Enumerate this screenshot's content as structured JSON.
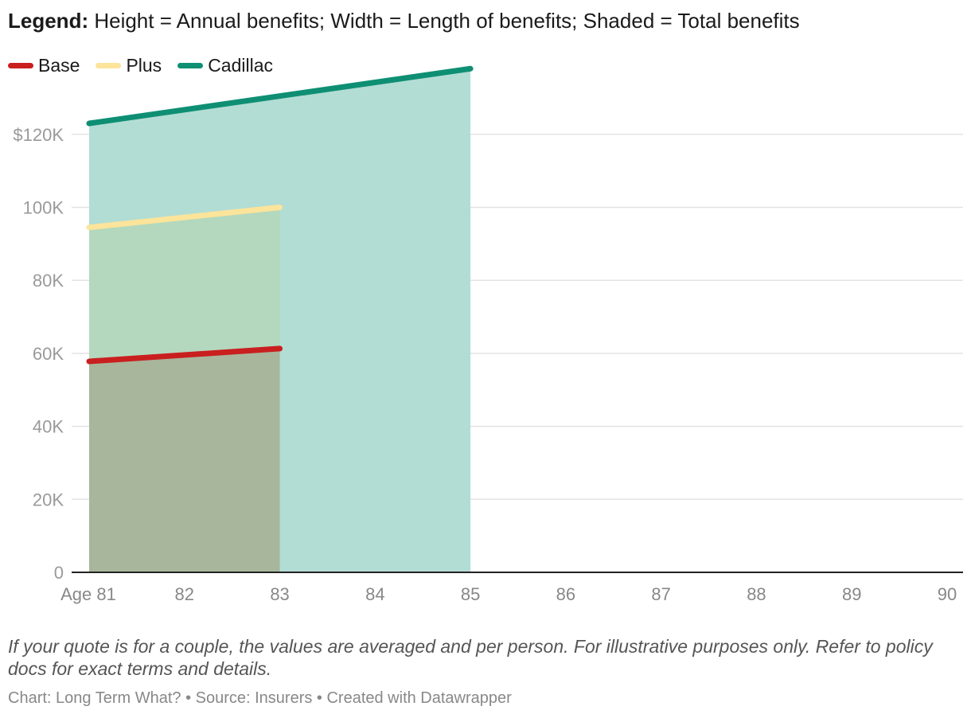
{
  "header": {
    "legend_label": "Legend:",
    "legend_text": " Height = Annual benefits; Width = Length of benefits; Shaded = Total benefits"
  },
  "chart_data": {
    "type": "area",
    "title": "Legend: Height = Annual benefits; Width = Length of benefits; Shaded = Total benefits",
    "xlabel": "",
    "ylabel": "",
    "x_ticks": [
      81,
      82,
      83,
      84,
      85,
      86,
      87,
      88,
      89,
      90
    ],
    "x_tick_labels": [
      "Age 81",
      "82",
      "83",
      "84",
      "85",
      "86",
      "87",
      "88",
      "89",
      "90"
    ],
    "xlim": [
      81,
      90
    ],
    "ylim": [
      0,
      135000
    ],
    "y_ticks": [
      0,
      20000,
      40000,
      60000,
      80000,
      100000,
      120000
    ],
    "y_tick_labels": [
      "0",
      "20K",
      "40K",
      "60K",
      "80K",
      "100K",
      "$120K"
    ],
    "grid": true,
    "legend_position": "top-left",
    "series": [
      {
        "name": "Cadillac",
        "color": "#0e8f73",
        "fill": "#b2ddd4",
        "x": [
          81,
          85
        ],
        "y": [
          123000,
          138000
        ]
      },
      {
        "name": "Plus",
        "color": "#fce49b",
        "fill": "#b3d8bd",
        "x": [
          81,
          83
        ],
        "y": [
          94500,
          100000
        ]
      },
      {
        "name": "Base",
        "color": "#c91f1f",
        "fill": "#a8b69c",
        "x": [
          81,
          83
        ],
        "y": [
          57800,
          61300
        ]
      }
    ]
  },
  "legend": {
    "items": [
      {
        "name": "Base",
        "color": "#c91f1f"
      },
      {
        "name": "Plus",
        "color": "#fce49b"
      },
      {
        "name": "Cadillac",
        "color": "#0e8f73"
      }
    ]
  },
  "footer": {
    "notes": "If your quote is for a couple, the values are averaged and per person. For illustrative purposes only. Refer to policy docs for exact terms and details.",
    "credit": "Chart: Long Term What? • Source: Insurers • Created with Datawrapper"
  }
}
